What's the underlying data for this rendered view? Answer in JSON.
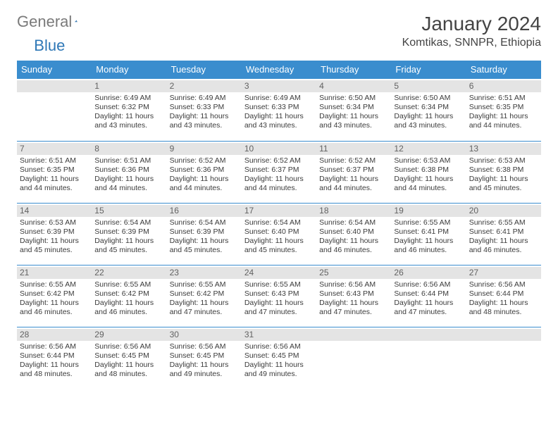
{
  "logo": {
    "word1": "General",
    "word2": "Blue"
  },
  "title": "January 2024",
  "location": "Komtikas, SNNPR, Ethiopia",
  "daynames": [
    "Sunday",
    "Monday",
    "Tuesday",
    "Wednesday",
    "Thursday",
    "Friday",
    "Saturday"
  ],
  "colors": {
    "header_bg": "#3a8dce",
    "border": "#3a8dce",
    "daynum_bg": "#e4e4e4",
    "text": "#3b3b3b",
    "logo_gray": "#7a7a7a",
    "logo_blue": "#2f78b7"
  },
  "days": [
    {
      "n": "1",
      "sr": "6:49 AM",
      "ss": "6:32 PM",
      "dl": "11 hours and 43 minutes."
    },
    {
      "n": "2",
      "sr": "6:49 AM",
      "ss": "6:33 PM",
      "dl": "11 hours and 43 minutes."
    },
    {
      "n": "3",
      "sr": "6:49 AM",
      "ss": "6:33 PM",
      "dl": "11 hours and 43 minutes."
    },
    {
      "n": "4",
      "sr": "6:50 AM",
      "ss": "6:34 PM",
      "dl": "11 hours and 43 minutes."
    },
    {
      "n": "5",
      "sr": "6:50 AM",
      "ss": "6:34 PM",
      "dl": "11 hours and 43 minutes."
    },
    {
      "n": "6",
      "sr": "6:51 AM",
      "ss": "6:35 PM",
      "dl": "11 hours and 44 minutes."
    },
    {
      "n": "7",
      "sr": "6:51 AM",
      "ss": "6:35 PM",
      "dl": "11 hours and 44 minutes."
    },
    {
      "n": "8",
      "sr": "6:51 AM",
      "ss": "6:36 PM",
      "dl": "11 hours and 44 minutes."
    },
    {
      "n": "9",
      "sr": "6:52 AM",
      "ss": "6:36 PM",
      "dl": "11 hours and 44 minutes."
    },
    {
      "n": "10",
      "sr": "6:52 AM",
      "ss": "6:37 PM",
      "dl": "11 hours and 44 minutes."
    },
    {
      "n": "11",
      "sr": "6:52 AM",
      "ss": "6:37 PM",
      "dl": "11 hours and 44 minutes."
    },
    {
      "n": "12",
      "sr": "6:53 AM",
      "ss": "6:38 PM",
      "dl": "11 hours and 44 minutes."
    },
    {
      "n": "13",
      "sr": "6:53 AM",
      "ss": "6:38 PM",
      "dl": "11 hours and 45 minutes."
    },
    {
      "n": "14",
      "sr": "6:53 AM",
      "ss": "6:39 PM",
      "dl": "11 hours and 45 minutes."
    },
    {
      "n": "15",
      "sr": "6:54 AM",
      "ss": "6:39 PM",
      "dl": "11 hours and 45 minutes."
    },
    {
      "n": "16",
      "sr": "6:54 AM",
      "ss": "6:39 PM",
      "dl": "11 hours and 45 minutes."
    },
    {
      "n": "17",
      "sr": "6:54 AM",
      "ss": "6:40 PM",
      "dl": "11 hours and 45 minutes."
    },
    {
      "n": "18",
      "sr": "6:54 AM",
      "ss": "6:40 PM",
      "dl": "11 hours and 46 minutes."
    },
    {
      "n": "19",
      "sr": "6:55 AM",
      "ss": "6:41 PM",
      "dl": "11 hours and 46 minutes."
    },
    {
      "n": "20",
      "sr": "6:55 AM",
      "ss": "6:41 PM",
      "dl": "11 hours and 46 minutes."
    },
    {
      "n": "21",
      "sr": "6:55 AM",
      "ss": "6:42 PM",
      "dl": "11 hours and 46 minutes."
    },
    {
      "n": "22",
      "sr": "6:55 AM",
      "ss": "6:42 PM",
      "dl": "11 hours and 46 minutes."
    },
    {
      "n": "23",
      "sr": "6:55 AM",
      "ss": "6:42 PM",
      "dl": "11 hours and 47 minutes."
    },
    {
      "n": "24",
      "sr": "6:55 AM",
      "ss": "6:43 PM",
      "dl": "11 hours and 47 minutes."
    },
    {
      "n": "25",
      "sr": "6:56 AM",
      "ss": "6:43 PM",
      "dl": "11 hours and 47 minutes."
    },
    {
      "n": "26",
      "sr": "6:56 AM",
      "ss": "6:44 PM",
      "dl": "11 hours and 47 minutes."
    },
    {
      "n": "27",
      "sr": "6:56 AM",
      "ss": "6:44 PM",
      "dl": "11 hours and 48 minutes."
    },
    {
      "n": "28",
      "sr": "6:56 AM",
      "ss": "6:44 PM",
      "dl": "11 hours and 48 minutes."
    },
    {
      "n": "29",
      "sr": "6:56 AM",
      "ss": "6:45 PM",
      "dl": "11 hours and 48 minutes."
    },
    {
      "n": "30",
      "sr": "6:56 AM",
      "ss": "6:45 PM",
      "dl": "11 hours and 49 minutes."
    },
    {
      "n": "31",
      "sr": "6:56 AM",
      "ss": "6:45 PM",
      "dl": "11 hours and 49 minutes."
    }
  ],
  "labels": {
    "sunrise": "Sunrise:",
    "sunset": "Sunset:",
    "daylight": "Daylight:"
  },
  "start_weekday": 1
}
